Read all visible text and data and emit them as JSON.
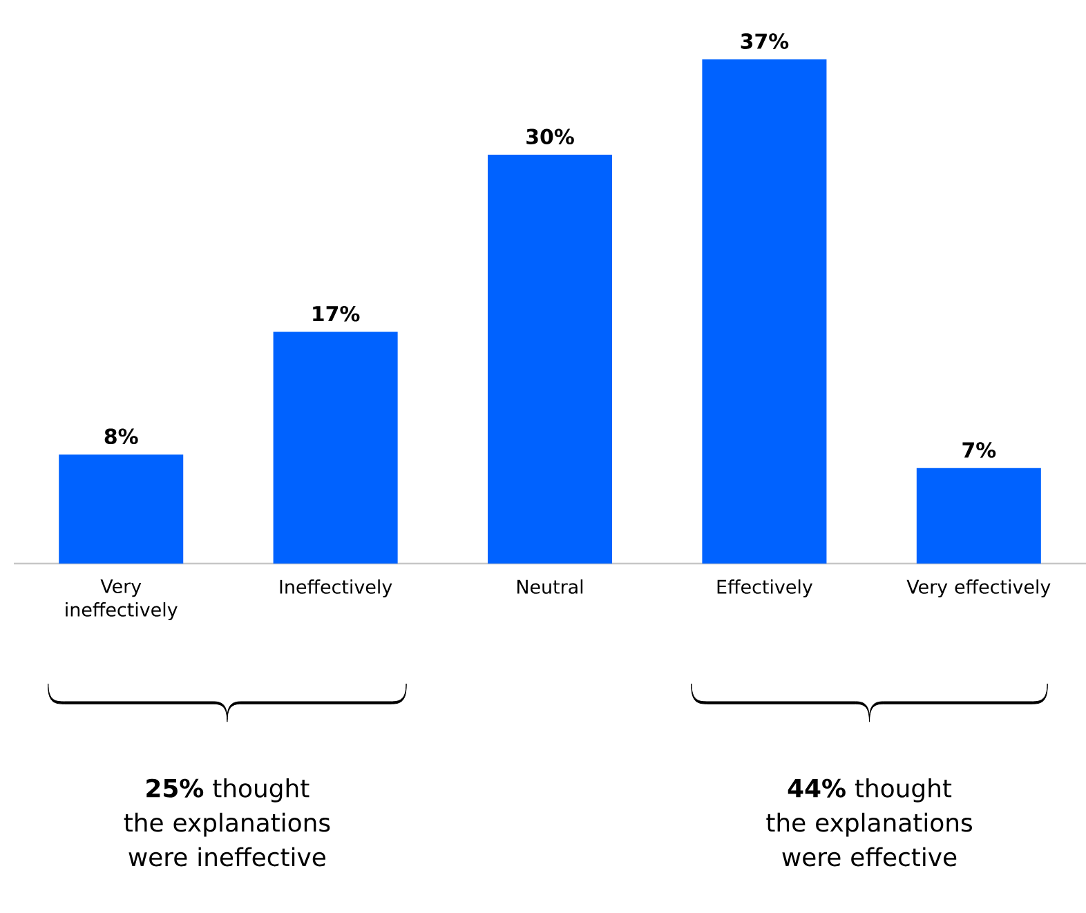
{
  "chart_data": {
    "type": "bar",
    "categories": [
      "Very ineffectively",
      "Ineffectively",
      "Neutral",
      "Effectively",
      "Very effectively"
    ],
    "values": [
      8,
      17,
      30,
      37,
      7
    ],
    "color": "#0062ff",
    "value_labels": [
      "8%",
      "17%",
      "30%",
      "37%",
      "7%"
    ],
    "annotations": [
      "**25%** thought the explanations were ineffective",
      "**44%** thought the explanations were effective"
    ]
  }
}
